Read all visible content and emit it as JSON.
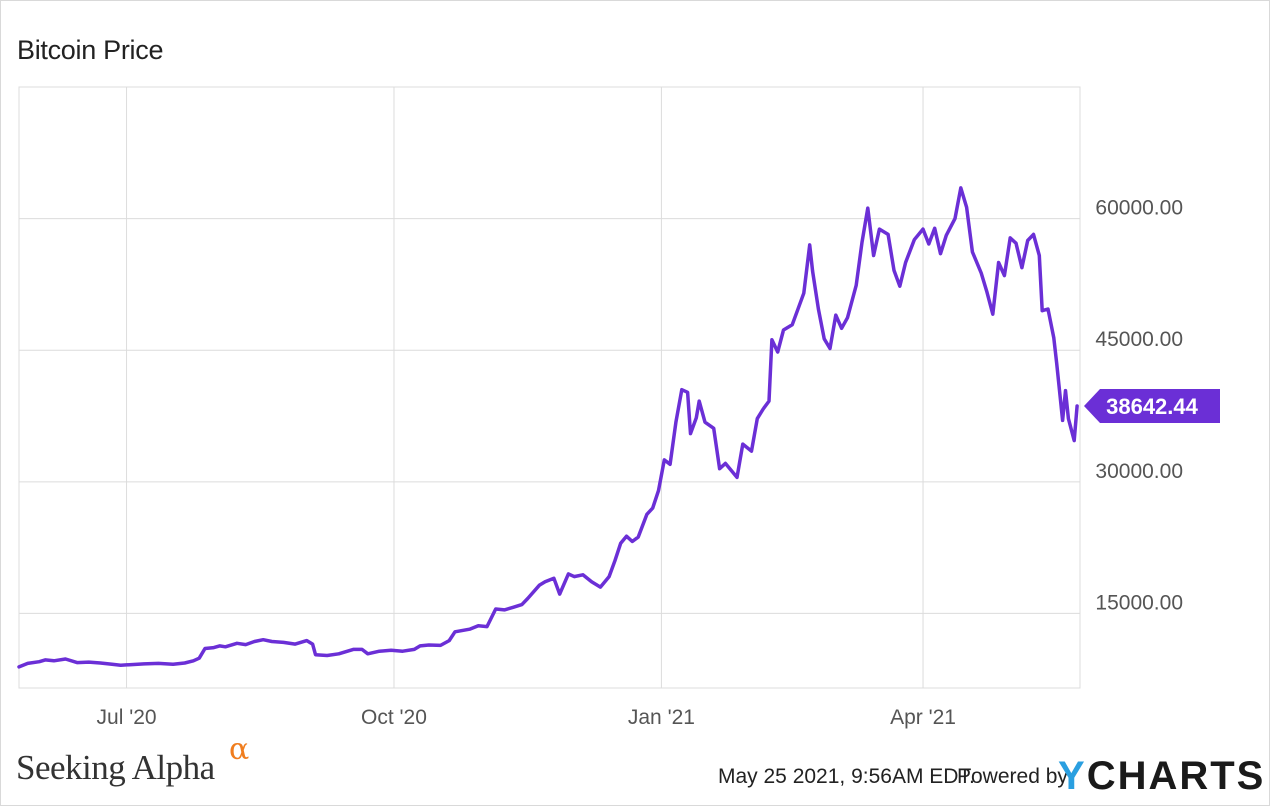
{
  "title": "Bitcoin Price",
  "footer": {
    "brand": "Seeking Alpha",
    "brand_mark": "α",
    "timestamp": "May 25 2021, 9:56AM EDT.",
    "powered_by": "Powered by",
    "logo_y": "Y",
    "logo_rest": "CHARTS"
  },
  "colors": {
    "line": "#6b2fd6",
    "badge": "#6b2fd6",
    "grid": "#dcdcdc",
    "axis_text": "#555555",
    "brand_mark": "#f07d1e",
    "logo_y": "#2a9fe0"
  },
  "chart_data": {
    "type": "line",
    "title": "Bitcoin Price",
    "x_tick_labels": [
      "Jul '20",
      "Oct '20",
      "Jan '21",
      "Apr '21"
    ],
    "x_tick_dates": [
      "2020-07-01",
      "2020-10-01",
      "2021-01-01",
      "2021-04-01"
    ],
    "y_tick_labels": [
      "15000.00",
      "30000.00",
      "45000.00",
      "60000.00"
    ],
    "y_ticks": [
      15000,
      30000,
      45000,
      60000
    ],
    "ylim": [
      6500,
      75000
    ],
    "xlim": [
      "2020-05-25",
      "2021-05-25"
    ],
    "grid": true,
    "axis_position": "right",
    "last_value_label": "38642.44",
    "series": [
      {
        "points": [
          [
            "2020-05-25",
            8900
          ],
          [
            "2020-05-28",
            9300
          ],
          [
            "2020-06-01",
            9500
          ],
          [
            "2020-06-03",
            9700
          ],
          [
            "2020-06-06",
            9600
          ],
          [
            "2020-06-10",
            9800
          ],
          [
            "2020-06-14",
            9400
          ],
          [
            "2020-06-18",
            9450
          ],
          [
            "2020-06-22",
            9350
          ],
          [
            "2020-06-26",
            9200
          ],
          [
            "2020-06-29",
            9100
          ],
          [
            "2020-07-02",
            9150
          ],
          [
            "2020-07-07",
            9250
          ],
          [
            "2020-07-12",
            9300
          ],
          [
            "2020-07-17",
            9200
          ],
          [
            "2020-07-21",
            9350
          ],
          [
            "2020-07-24",
            9600
          ],
          [
            "2020-07-26",
            9900
          ],
          [
            "2020-07-28",
            11000
          ],
          [
            "2020-07-31",
            11100
          ],
          [
            "2020-08-02",
            11300
          ],
          [
            "2020-08-04",
            11200
          ],
          [
            "2020-08-08",
            11600
          ],
          [
            "2020-08-11",
            11450
          ],
          [
            "2020-08-14",
            11800
          ],
          [
            "2020-08-17",
            12000
          ],
          [
            "2020-08-20",
            11800
          ],
          [
            "2020-08-24",
            11700
          ],
          [
            "2020-08-28",
            11500
          ],
          [
            "2020-09-01",
            11900
          ],
          [
            "2020-09-03",
            11500
          ],
          [
            "2020-09-04",
            10300
          ],
          [
            "2020-09-08",
            10200
          ],
          [
            "2020-09-12",
            10400
          ],
          [
            "2020-09-17",
            10900
          ],
          [
            "2020-09-20",
            10900
          ],
          [
            "2020-09-22",
            10400
          ],
          [
            "2020-09-26",
            10700
          ],
          [
            "2020-09-30",
            10800
          ],
          [
            "2020-10-04",
            10700
          ],
          [
            "2020-10-08",
            10900
          ],
          [
            "2020-10-10",
            11300
          ],
          [
            "2020-10-13",
            11400
          ],
          [
            "2020-10-17",
            11350
          ],
          [
            "2020-10-20",
            11900
          ],
          [
            "2020-10-22",
            12900
          ],
          [
            "2020-10-27",
            13200
          ],
          [
            "2020-10-30",
            13600
          ],
          [
            "2020-11-02",
            13500
          ],
          [
            "2020-11-05",
            15500
          ],
          [
            "2020-11-08",
            15400
          ],
          [
            "2020-11-11",
            15700
          ],
          [
            "2020-11-14",
            16000
          ],
          [
            "2020-11-16",
            16700
          ],
          [
            "2020-11-20",
            18200
          ],
          [
            "2020-11-22",
            18600
          ],
          [
            "2020-11-25",
            19000
          ],
          [
            "2020-11-27",
            17200
          ],
          [
            "2020-11-30",
            19500
          ],
          [
            "2020-12-02",
            19200
          ],
          [
            "2020-12-05",
            19400
          ],
          [
            "2020-12-08",
            18600
          ],
          [
            "2020-12-11",
            18000
          ],
          [
            "2020-12-14",
            19200
          ],
          [
            "2020-12-16",
            21000
          ],
          [
            "2020-12-18",
            23000
          ],
          [
            "2020-12-20",
            23800
          ],
          [
            "2020-12-22",
            23200
          ],
          [
            "2020-12-24",
            23700
          ],
          [
            "2020-12-27",
            26300
          ],
          [
            "2020-12-29",
            27000
          ],
          [
            "2020-12-31",
            29000
          ],
          [
            "2021-01-02",
            32500
          ],
          [
            "2021-01-04",
            32000
          ],
          [
            "2021-01-06",
            36800
          ],
          [
            "2021-01-08",
            40500
          ],
          [
            "2021-01-10",
            40200
          ],
          [
            "2021-01-11",
            35500
          ],
          [
            "2021-01-13",
            37300
          ],
          [
            "2021-01-14",
            39200
          ],
          [
            "2021-01-16",
            36800
          ],
          [
            "2021-01-19",
            36100
          ],
          [
            "2021-01-21",
            31500
          ],
          [
            "2021-01-23",
            32100
          ],
          [
            "2021-01-27",
            30500
          ],
          [
            "2021-01-29",
            34300
          ],
          [
            "2021-02-01",
            33500
          ],
          [
            "2021-02-03",
            37200
          ],
          [
            "2021-02-05",
            38300
          ],
          [
            "2021-02-07",
            39200
          ],
          [
            "2021-02-08",
            46200
          ],
          [
            "2021-02-10",
            44800
          ],
          [
            "2021-02-12",
            47300
          ],
          [
            "2021-02-15",
            47900
          ],
          [
            "2021-02-19",
            51500
          ],
          [
            "2021-02-21",
            57000
          ],
          [
            "2021-02-22",
            54000
          ],
          [
            "2021-02-24",
            49700
          ],
          [
            "2021-02-26",
            46300
          ],
          [
            "2021-02-28",
            45200
          ],
          [
            "2021-03-02",
            49000
          ],
          [
            "2021-03-04",
            47500
          ],
          [
            "2021-03-06",
            48700
          ],
          [
            "2021-03-09",
            52400
          ],
          [
            "2021-03-11",
            57300
          ],
          [
            "2021-03-13",
            61200
          ],
          [
            "2021-03-15",
            55800
          ],
          [
            "2021-03-17",
            58800
          ],
          [
            "2021-03-20",
            58200
          ],
          [
            "2021-03-22",
            54100
          ],
          [
            "2021-03-24",
            52300
          ],
          [
            "2021-03-26",
            55000
          ],
          [
            "2021-03-29",
            57600
          ],
          [
            "2021-04-01",
            58800
          ],
          [
            "2021-04-03",
            57100
          ],
          [
            "2021-04-05",
            58900
          ],
          [
            "2021-04-07",
            56000
          ],
          [
            "2021-04-09",
            58100
          ],
          [
            "2021-04-12",
            60000
          ],
          [
            "2021-04-14",
            63500
          ],
          [
            "2021-04-16",
            61300
          ],
          [
            "2021-04-18",
            56200
          ],
          [
            "2021-04-21",
            53800
          ],
          [
            "2021-04-23",
            51600
          ],
          [
            "2021-04-25",
            49100
          ],
          [
            "2021-04-27",
            55000
          ],
          [
            "2021-04-29",
            53500
          ],
          [
            "2021-05-01",
            57800
          ],
          [
            "2021-05-03",
            57200
          ],
          [
            "2021-05-05",
            54400
          ],
          [
            "2021-05-07",
            57500
          ],
          [
            "2021-05-09",
            58200
          ],
          [
            "2021-05-11",
            55800
          ],
          [
            "2021-05-12",
            49500
          ],
          [
            "2021-05-14",
            49700
          ],
          [
            "2021-05-16",
            46400
          ],
          [
            "2021-05-17",
            43500
          ],
          [
            "2021-05-19",
            37000
          ],
          [
            "2021-05-20",
            40400
          ],
          [
            "2021-05-21",
            37200
          ],
          [
            "2021-05-23",
            34700
          ],
          [
            "2021-05-24",
            38642.44
          ]
        ]
      }
    ]
  }
}
